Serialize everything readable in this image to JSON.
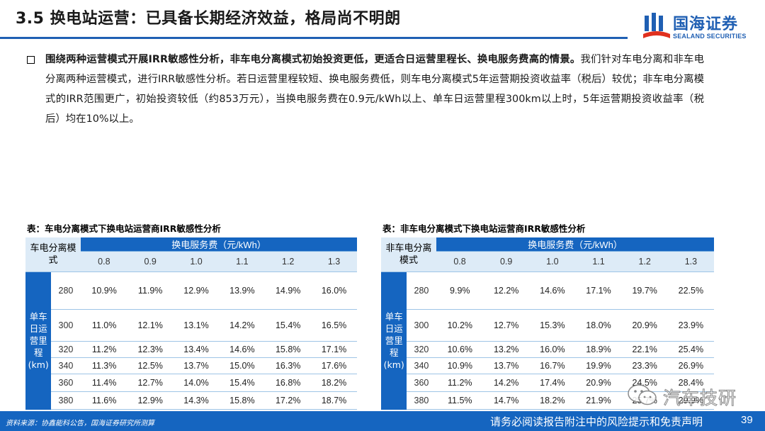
{
  "header": {
    "title": "3.5 换电站运营：已具备长期经济效益，格局尚不明朗",
    "brand_cn": "国海证券",
    "brand_en": "SEALAND SECURITIES"
  },
  "body": {
    "bold": "围绕两种运营模式开展IRR敏感性分析，非车电分离模式初始投资更低，更适合日运营里程长、换电服务费高的情景。",
    "rest": "我们针对车电分离和非车电分离两种运营模式，进行IRR敏感性分析。若日运营里程较短、换电服务费低，则车电分离模式5年运营期投资收益率（税后）较优；非车电分离模式的IRR范围更广，初始投资较低（约853万元），当换电服务费在0.9元/kWh以上、单车日运营里程300km以上时，5年运营期投资收益率（税后）均在10%以上。"
  },
  "tables": [
    {
      "caption": "表：车电分离模式下换电站运营商IRR敏感性分析",
      "corner": "车电分离模式",
      "fee_header": "换电服务费（元/kWh）",
      "fees": [
        "0.8",
        "0.9",
        "1.0",
        "1.1",
        "1.2",
        "1.3"
      ],
      "side_label": "单车日运营里程(km)",
      "rows": [
        {
          "km": "280",
          "vals": [
            "10.9%",
            "11.9%",
            "12.9%",
            "13.9%",
            "14.9%",
            "16.0%"
          ]
        },
        {
          "km": "300",
          "vals": [
            "11.0%",
            "12.1%",
            "13.1%",
            "14.2%",
            "15.4%",
            "16.5%"
          ]
        },
        {
          "km": "320",
          "vals": [
            "11.2%",
            "12.3%",
            "13.4%",
            "14.6%",
            "15.8%",
            "17.1%"
          ]
        },
        {
          "km": "340",
          "vals": [
            "11.3%",
            "12.5%",
            "13.7%",
            "15.0%",
            "16.3%",
            "17.6%"
          ]
        },
        {
          "km": "360",
          "vals": [
            "11.4%",
            "12.7%",
            "14.0%",
            "15.4%",
            "16.8%",
            "18.2%"
          ]
        },
        {
          "km": "380",
          "vals": [
            "11.6%",
            "12.9%",
            "14.3%",
            "15.8%",
            "17.2%",
            "18.7%"
          ]
        }
      ]
    },
    {
      "caption": "表：非车电分离模式下换电站运营商IRR敏感性分析",
      "corner": "非车电分离模式",
      "fee_header": "换电服务费（元/kWh）",
      "fees": [
        "0.8",
        "0.9",
        "1.0",
        "1.1",
        "1.2",
        "1.3"
      ],
      "side_label": "单车日运营里程(km)",
      "rows": [
        {
          "km": "280",
          "vals": [
            "9.9%",
            "12.2%",
            "14.6%",
            "17.1%",
            "19.7%",
            "22.5%"
          ]
        },
        {
          "km": "300",
          "vals": [
            "10.2%",
            "12.7%",
            "15.3%",
            "18.0%",
            "20.9%",
            "23.9%"
          ]
        },
        {
          "km": "320",
          "vals": [
            "10.6%",
            "13.2%",
            "16.0%",
            "18.9%",
            "22.1%",
            "25.4%"
          ]
        },
        {
          "km": "340",
          "vals": [
            "10.9%",
            "13.7%",
            "16.7%",
            "19.9%",
            "23.3%",
            "26.9%"
          ]
        },
        {
          "km": "360",
          "vals": [
            "11.2%",
            "14.2%",
            "17.4%",
            "20.9%",
            "24.5%",
            "28.4%"
          ]
        },
        {
          "km": "380",
          "vals": [
            "11.5%",
            "14.7%",
            "18.2%",
            "21.9%",
            "25.7%",
            "29.9%"
          ]
        }
      ]
    }
  ],
  "footer": {
    "source": "资料来源：协鑫能科公告，国海证券研究所测算",
    "disclaimer": "请务必阅读报告附注中的风险提示和免责声明",
    "page": "39"
  },
  "watermark": {
    "text": "汽车技研"
  },
  "colors": {
    "brand_blue": "#1565c0",
    "light_blue": "#ddebf7",
    "rule_blue": "#1f5fb3"
  }
}
